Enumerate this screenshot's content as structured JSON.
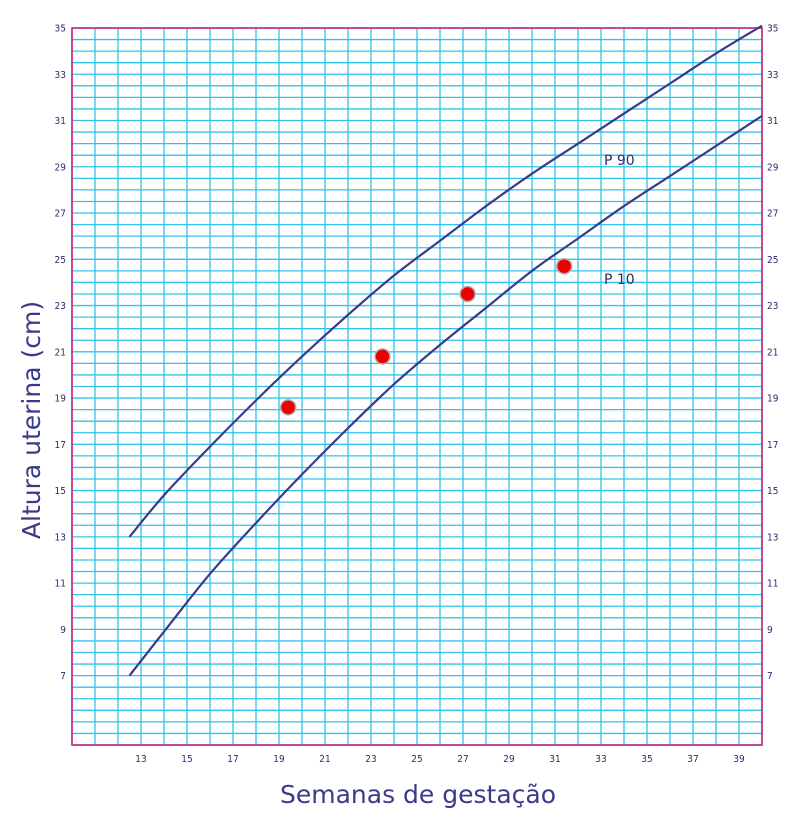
{
  "chart_data": {
    "type": "line",
    "title": "",
    "xlabel": "Semanas de gestação",
    "ylabel": "Altura uterina (cm)",
    "xlim": [
      10,
      40
    ],
    "ylim": [
      4,
      35
    ],
    "x_ticks": [
      13,
      15,
      17,
      19,
      21,
      23,
      25,
      27,
      29,
      31,
      33,
      35,
      37,
      39
    ],
    "y_ticks": [
      7,
      9,
      11,
      13,
      15,
      17,
      19,
      21,
      23,
      25,
      27,
      29,
      31,
      33,
      35
    ],
    "grid": true,
    "series": [
      {
        "name": "P 90",
        "x": [
          12.5,
          14,
          16,
          18,
          20,
          22,
          24,
          26,
          28,
          30,
          32,
          34,
          36,
          38,
          40
        ],
        "values": [
          13,
          14.8,
          16.9,
          18.9,
          20.8,
          22.6,
          24.3,
          25.8,
          27.3,
          28.7,
          30.0,
          31.3,
          32.6,
          33.9,
          35.1
        ]
      },
      {
        "name": "P 10",
        "x": [
          12.5,
          14,
          16,
          18,
          20,
          22,
          24,
          26,
          28,
          30,
          32,
          34,
          36,
          38,
          40
        ],
        "values": [
          7,
          8.9,
          11.4,
          13.6,
          15.7,
          17.7,
          19.6,
          21.3,
          22.9,
          24.5,
          25.9,
          27.3,
          28.6,
          29.9,
          31.2
        ]
      }
    ],
    "points": {
      "x": [
        19.4,
        23.5,
        27.2,
        31.4
      ],
      "values": [
        18.6,
        20.8,
        23.5,
        24.7
      ]
    },
    "colors": {
      "grid": "#33c3ea",
      "frame": "#c2257a",
      "curve": "#3a3a8c",
      "point_fill": "#ee0000",
      "point_stroke": "#b0b0b0",
      "text": "#2b2b6b"
    }
  }
}
